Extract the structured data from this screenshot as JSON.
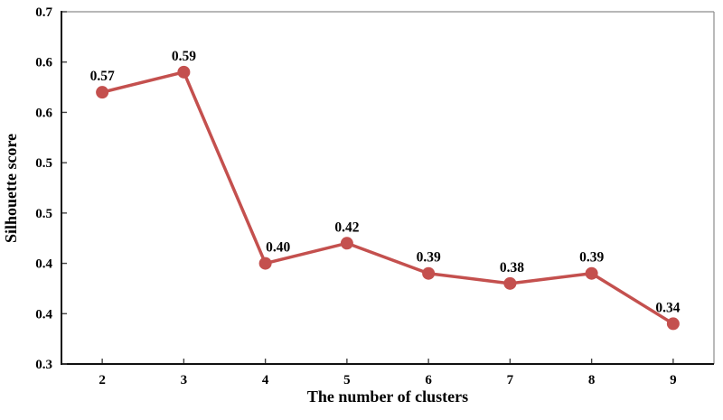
{
  "chart_data": {
    "type": "line",
    "title": "",
    "xlabel": "The number of clusters",
    "ylabel": "Silhouette score",
    "categories": [
      "2",
      "3",
      "4",
      "5",
      "6",
      "7",
      "8",
      "9"
    ],
    "series": [
      {
        "name": "Silhouette score",
        "values": [
          0.57,
          0.59,
          0.4,
          0.42,
          0.39,
          0.38,
          0.39,
          0.34
        ]
      }
    ],
    "point_labels": [
      "0.57",
      "0.59",
      "0.40",
      "0.42",
      "0.39",
      "0.38",
      "0.39",
      "0.34"
    ],
    "x_axis": {
      "tick_labels": [
        "2",
        "3",
        "4",
        "5",
        "6",
        "7",
        "8",
        "9"
      ]
    },
    "y_axis": {
      "min": 0.3,
      "max": 0.65,
      "tick_step": 0.05,
      "tick_labels_top_to_bottom": [
        "0.7",
        "0.6",
        "0.6",
        "0.5",
        "0.5",
        "0.4",
        "0.4",
        "0.3"
      ]
    },
    "legend": "none",
    "grid": false,
    "colors": {
      "line": "#c4504e",
      "marker": "#c4504e",
      "axis_dark": "#111111",
      "axis_light": "#8c8c8c",
      "tick": "#444444",
      "text": "#000000",
      "background": "#ffffff"
    }
  }
}
